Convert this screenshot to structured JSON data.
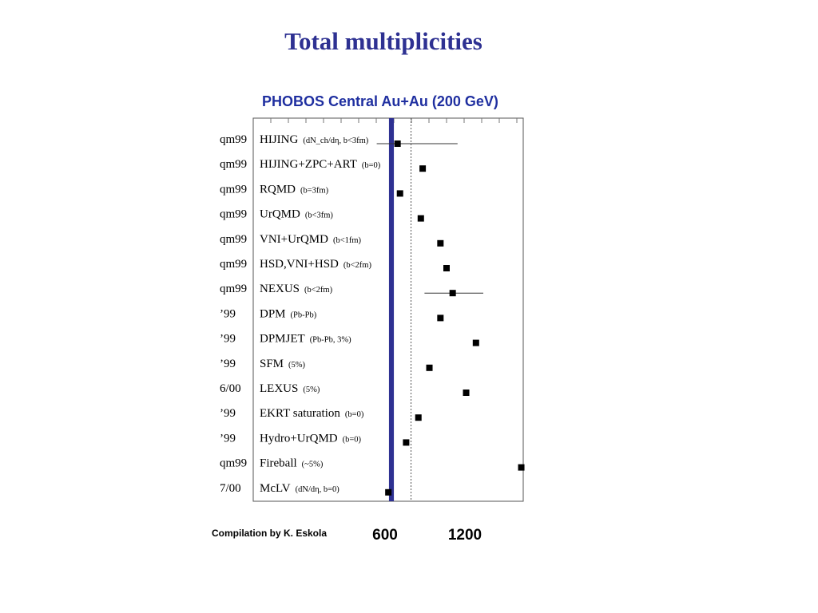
{
  "slide": {
    "title": "Total multiplicities"
  },
  "chart_data": {
    "type": "scatter",
    "title": "PHOBOS Central Au+Au (200 GeV)",
    "x_ticks": [
      "600",
      "1200"
    ],
    "xlim": [
      450,
      1450
    ],
    "measurement_band": [
      580,
      620
    ],
    "measurement_dotted_line": 760,
    "grid": "vertical dotted",
    "rows": [
      {
        "year": "qm99",
        "model": "HIJING",
        "condition": "(dN_ch/dη, b<3fm)",
        "value": 650,
        "err_low": 480,
        "err_high": 1140
      },
      {
        "year": "qm99",
        "model": "HIJING+ZPC+ART",
        "condition": "(b=0)",
        "value": 855
      },
      {
        "year": "qm99",
        "model": "RQMD",
        "condition": "(b=3fm)",
        "value": 670
      },
      {
        "year": "qm99",
        "model": "UrQMD",
        "condition": "(b<3fm)",
        "value": 840
      },
      {
        "year": "qm99",
        "model": "VNI+UrQMD",
        "condition": "(b<1fm)",
        "value": 1000
      },
      {
        "year": "qm99",
        "model": "HSD,VNI+HSD",
        "condition": "(b<2fm)",
        "value": 1050
      },
      {
        "year": "qm99",
        "model": "NEXUS",
        "condition": "(b<2fm)",
        "value": 1100,
        "err_low": 870,
        "err_high": 1350
      },
      {
        "year": "’99",
        "model": "DPM",
        "condition": "(Pb-Pb)",
        "value": 1000
      },
      {
        "year": "’99",
        "model": "DPMJET",
        "condition": "(Pb-Pb, 3%)",
        "value": 1290
      },
      {
        "year": "’99",
        "model": "SFM",
        "condition": "(5%)",
        "value": 910
      },
      {
        "year": "6/00",
        "model": "LEXUS",
        "condition": "(5%)",
        "value": 1210
      },
      {
        "year": "’99",
        "model": "EKRT saturation",
        "condition": "(b=0)",
        "value": 820
      },
      {
        "year": "’99",
        "model": "Hydro+UrQMD",
        "condition": "(b=0)",
        "value": 720
      },
      {
        "year": "qm99",
        "model": "Fireball",
        "condition": "(~5%)",
        "value": 1660
      },
      {
        "year": "7/00",
        "model": "McLV",
        "condition": "(dN/dη, b=0)",
        "value": 575
      }
    ]
  },
  "footer": {
    "credit": "Compilation by K. Eskola"
  },
  "colors": {
    "title": "#2e3192",
    "chart_title": "#1f2fa0",
    "band": "#2e3192",
    "marker": "#000000"
  }
}
